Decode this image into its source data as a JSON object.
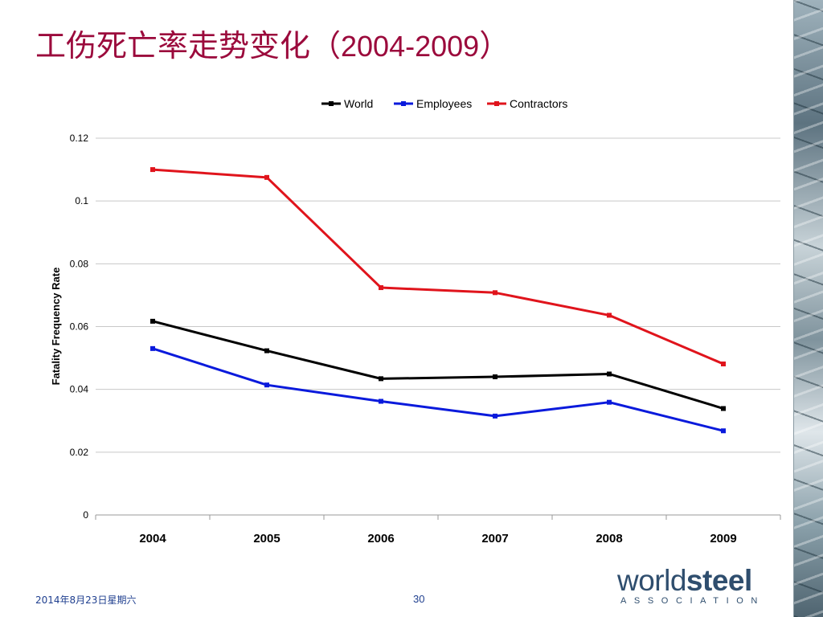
{
  "slide": {
    "title_cn": "工伤死亡率走势变化（",
    "title_years": "2004-2009",
    "title_close": "）",
    "footer_date": "2014年8月23日星期六",
    "page_number": "30"
  },
  "logo": {
    "part1": "world",
    "part2": "steel",
    "sub": "ASSOCIATION"
  },
  "chart_data": {
    "type": "line",
    "title": "",
    "xlabel": "",
    "ylabel": "Fatality Frequency Rate",
    "categories": [
      "2004",
      "2005",
      "2006",
      "2007",
      "2008",
      "2009"
    ],
    "ylim": [
      0,
      0.12
    ],
    "yticks": [
      "0",
      "0.02",
      "0.04",
      "0.06",
      "0.08",
      "0.1",
      "0.12"
    ],
    "grid": true,
    "legend_position": "top",
    "series": [
      {
        "name": "World",
        "color": "#000000",
        "values": [
          0.0617,
          0.0523,
          0.0434,
          0.044,
          0.0449,
          0.0339
        ]
      },
      {
        "name": "Employees",
        "color": "#0a1adc",
        "values": [
          0.053,
          0.0414,
          0.0362,
          0.0315,
          0.0359,
          0.0268
        ]
      },
      {
        "name": "Contractors",
        "color": "#e0141c",
        "values": [
          0.11,
          0.1075,
          0.0724,
          0.0708,
          0.0636,
          0.0481
        ]
      }
    ]
  }
}
